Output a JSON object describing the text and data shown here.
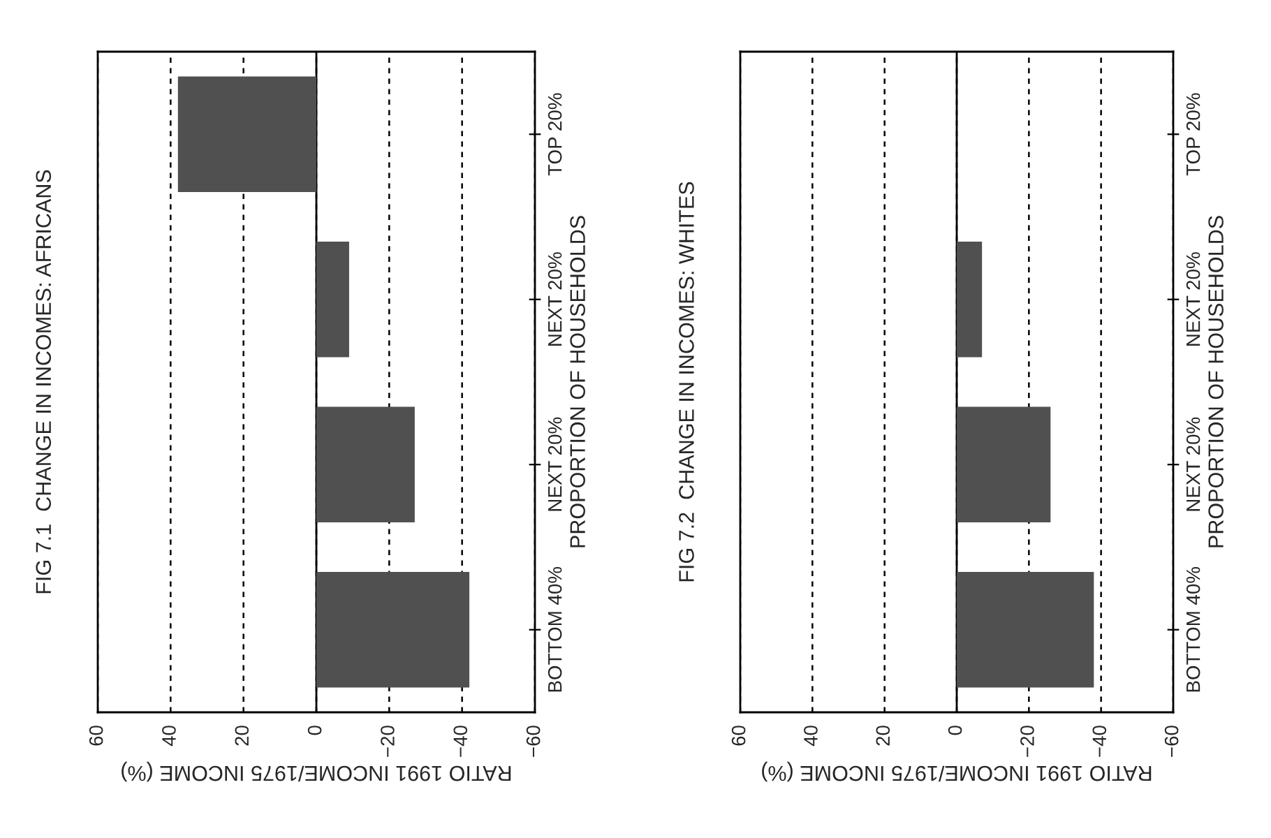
{
  "chart_data": [
    {
      "type": "bar",
      "orientation": "horizontal",
      "title": "FIG 7.1  CHANGE IN INCOMES: AFRICANS",
      "xlabel": "RATIO 1991 INCOME/1975 INCOME (%)",
      "ylabel": "PROPORTION OF HOUSEHOLDS",
      "categories": [
        "TOP 20%",
        "NEXT 20%",
        "NEXT 20%",
        "BOTTOM 40%"
      ],
      "values": [
        38,
        -9,
        -27,
        -42
      ],
      "color": "#505050",
      "xlim": [
        60,
        -60
      ],
      "xticks": [
        60,
        40,
        20,
        0,
        -20,
        -40,
        -60
      ],
      "grid": "x",
      "ref_lines": [
        {
          "axis": "x",
          "value": 0,
          "color": "#000000",
          "line_style": "solid"
        }
      ]
    },
    {
      "type": "bar",
      "orientation": "horizontal",
      "title": "FIG 7.2  CHANGE IN INCOMES: WHITES",
      "xlabel": "RATIO 1991 INCOME/1975 INCOME (%)",
      "ylabel": "PROPORTION OF HOUSEHOLDS",
      "categories": [
        "TOP 20%",
        "NEXT 20%",
        "NEXT 20%",
        "BOTTOM 40%"
      ],
      "values": [
        null,
        -7,
        -26,
        -38
      ],
      "color": "#505050",
      "xlim": [
        60,
        -60
      ],
      "xticks": [
        60,
        40,
        20,
        0,
        -20,
        -40,
        -60
      ],
      "grid": "x",
      "ref_lines": [
        {
          "axis": "x",
          "value": 0,
          "color": "#000000",
          "line_style": "solid"
        }
      ]
    }
  ]
}
